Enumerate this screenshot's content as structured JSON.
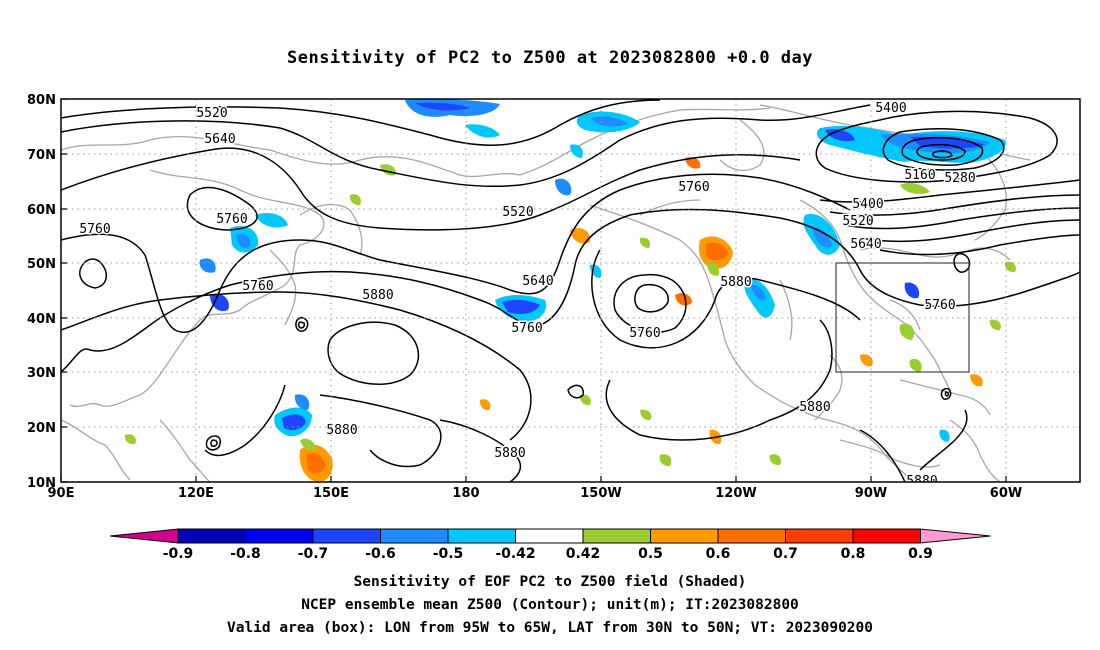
{
  "title": "Sensitivity of PC2 to Z500 at 2023082800 +0.0 day",
  "map": {
    "lat_labels": [
      "80N",
      "70N",
      "60N",
      "50N",
      "40N",
      "30N",
      "20N",
      "10N"
    ],
    "lon_labels": [
      "90E",
      "120E",
      "150E",
      "180",
      "150W",
      "120W",
      "90W",
      "60W"
    ],
    "contour_labels": [
      {
        "text": "5520"
      },
      {
        "text": "5640"
      },
      {
        "text": "5760"
      },
      {
        "text": "5760"
      },
      {
        "text": "5760"
      },
      {
        "text": "5880"
      },
      {
        "text": "5880"
      },
      {
        "text": "5880"
      },
      {
        "text": "5520"
      },
      {
        "text": "5640"
      },
      {
        "text": "5760"
      },
      {
        "text": "5760"
      },
      {
        "text": "5760"
      },
      {
        "text": "5880"
      },
      {
        "text": "5880"
      },
      {
        "text": "5400"
      },
      {
        "text": "5160"
      },
      {
        "text": "5280"
      },
      {
        "text": "5400"
      },
      {
        "text": "5520"
      },
      {
        "text": "5640"
      },
      {
        "text": "5760"
      },
      {
        "text": "5880"
      }
    ],
    "valid_box": {
      "lon_from": "95W",
      "lon_to": "65W",
      "lat_from": "30N",
      "lat_to": "50N"
    }
  },
  "colorbar": {
    "labels": [
      "-0.9",
      "-0.8",
      "-0.7",
      "-0.6",
      "-0.5",
      "-0.42",
      "0.42",
      "0.5",
      "0.6",
      "0.7",
      "0.8",
      "0.9"
    ],
    "colors": {
      "left_tri": "#d4008a",
      "c1": "#0000b4",
      "c2": "#0000f0",
      "c3": "#1e46ff",
      "c4": "#1e8cff",
      "c5": "#00c8ff",
      "white": "#ffffff",
      "g": "#9bcd32",
      "o1": "#ff9b00",
      "o2": "#ff6e00",
      "r1": "#ff3c00",
      "r2": "#ff0000",
      "right_tri": "#ff9bd2"
    }
  },
  "captions": {
    "line1": "Sensitivity of EOF PC2 to Z500 field (Shaded)",
    "line2": "NCEP ensemble mean Z500 (Contour); unit(m); IT:2023082800",
    "line3": "Valid area (box): LON from 95W to 65W, LAT from 30N to 50N; VT: 2023090200"
  }
}
